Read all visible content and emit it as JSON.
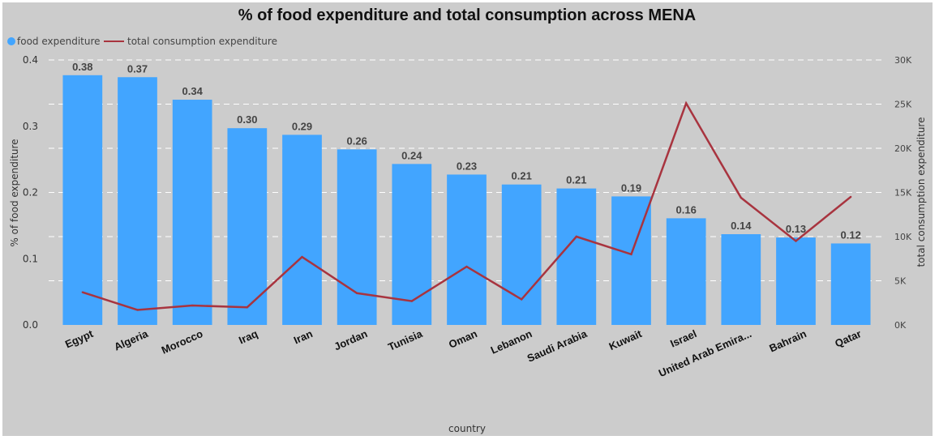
{
  "chart_data": {
    "type": "bar",
    "title": "% of food expenditure and total consumption across MENA",
    "xlabel": "country",
    "ylabel": "% of food expenditure",
    "y2label": "total consumption expenditure",
    "ylim": [
      0,
      0.4
    ],
    "y2lim": [
      0,
      30000
    ],
    "yticks": [
      "0.0",
      "0.1",
      "0.2",
      "0.3",
      "0.4"
    ],
    "y2ticks": [
      "0K",
      "5K",
      "10K",
      "15K",
      "20K",
      "25K",
      "30K"
    ],
    "grid": true,
    "legend_position": "top-left",
    "categories": [
      "Egypt",
      "Algeria",
      "Morocco",
      "Iraq",
      "Iran",
      "Jordan",
      "Tunisia",
      "Oman",
      "Lebanon",
      "Saudi Arabia",
      "Kuwait",
      "Israel",
      "United Arab Emira...",
      "Bahrain",
      "Qatar"
    ],
    "series": [
      {
        "name": "food expenditure",
        "type": "bar",
        "axis": "left",
        "color": "#42A5FF",
        "values": [
          0.377,
          0.374,
          0.34,
          0.297,
          0.287,
          0.265,
          0.243,
          0.227,
          0.212,
          0.206,
          0.194,
          0.161,
          0.137,
          0.132,
          0.123
        ],
        "labels": [
          "0.38",
          "0.37",
          "0.34",
          "0.30",
          "0.29",
          "0.26",
          "0.24",
          "0.23",
          "0.21",
          "0.21",
          "0.19",
          "0.16",
          "0.14",
          "0.13",
          "0.12"
        ]
      },
      {
        "name": "total consumption expenditure",
        "type": "line",
        "axis": "right",
        "color": "#A8343F",
        "values": [
          3700,
          1700,
          2200,
          2000,
          7700,
          3600,
          2700,
          6600,
          2900,
          10000,
          8000,
          25100,
          14400,
          9500,
          14500
        ]
      }
    ]
  },
  "colors": {
    "background": "#CCCCCC",
    "grid": "#FFFFFF"
  }
}
